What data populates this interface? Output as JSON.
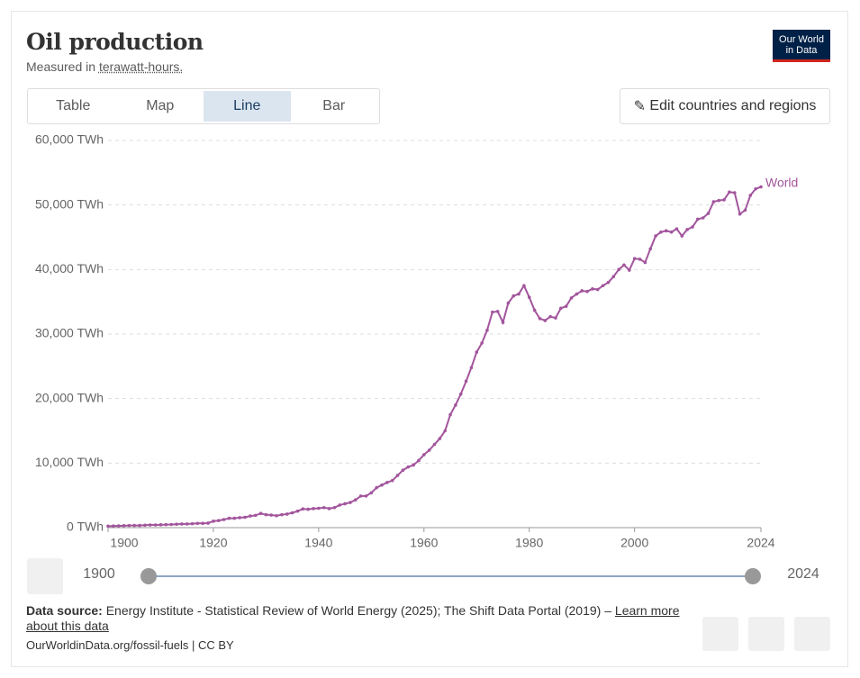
{
  "header": {
    "title": "Oil production",
    "subtitle": [
      "Measured in",
      "terawatt-hours."
    ],
    "logo": [
      "Our World",
      "in Data"
    ]
  },
  "tabs": [
    "Table",
    "Map",
    "Line",
    "Bar"
  ],
  "active_tab": "Line",
  "edit_button": "Edit countries and regions",
  "timeline": {
    "start": 1900,
    "end": 2024
  },
  "footer": {
    "source_label": "Data source:",
    "source_text": "Energy Institute - Statistical Review of World Energy (2025); The Shift Data Portal (2019) –",
    "learn_more": "Learn more about this data",
    "license": "OurWorldinData.org/fossil-fuels | CC BY"
  },
  "chart_data": {
    "type": "line",
    "grid": true,
    "xlim": [
      1900,
      2024
    ],
    "xticks": [
      1900,
      1920,
      1940,
      1960,
      1980,
      2000,
      2024
    ],
    "ylim": [
      0,
      60000
    ],
    "yticks": [
      {
        "value": 0,
        "label": "0 TWh"
      },
      {
        "value": 10000,
        "label": "10,000 TWh"
      },
      {
        "value": 20000,
        "label": "20,000 TWh"
      },
      {
        "value": 30000,
        "label": "30,000 TWh"
      },
      {
        "value": 40000,
        "label": "40,000 TWh"
      },
      {
        "value": 50000,
        "label": "50,000 TWh"
      },
      {
        "value": 60000,
        "label": "60,000 TWh"
      }
    ],
    "x": [
      1900,
      1901,
      1902,
      1903,
      1904,
      1905,
      1906,
      1907,
      1908,
      1909,
      1910,
      1911,
      1912,
      1913,
      1914,
      1915,
      1916,
      1917,
      1918,
      1919,
      1920,
      1921,
      1922,
      1923,
      1924,
      1925,
      1926,
      1927,
      1928,
      1929,
      1930,
      1931,
      1932,
      1933,
      1934,
      1935,
      1936,
      1937,
      1938,
      1939,
      1940,
      1941,
      1942,
      1943,
      1944,
      1945,
      1946,
      1947,
      1948,
      1949,
      1950,
      1951,
      1952,
      1953,
      1954,
      1955,
      1956,
      1957,
      1958,
      1959,
      1960,
      1961,
      1962,
      1963,
      1964,
      1965,
      1966,
      1967,
      1968,
      1969,
      1970,
      1971,
      1972,
      1973,
      1974,
      1975,
      1976,
      1977,
      1978,
      1979,
      1980,
      1981,
      1982,
      1983,
      1984,
      1985,
      1986,
      1987,
      1988,
      1989,
      1990,
      1991,
      1992,
      1993,
      1994,
      1995,
      1996,
      1997,
      1998,
      1999,
      2000,
      2001,
      2002,
      2003,
      2004,
      2005,
      2006,
      2007,
      2008,
      2009,
      2010,
      2011,
      2012,
      2013,
      2014,
      2015,
      2016,
      2017,
      2018,
      2019,
      2020,
      2021,
      2022,
      2023,
      2024
    ],
    "series": [
      {
        "name": "World",
        "color": "#a2559c",
        "values": [
          230,
          250,
          270,
          300,
          330,
          340,
          340,
          380,
          410,
          420,
          440,
          470,
          490,
          530,
          560,
          570,
          610,
          660,
          670,
          700,
          1000,
          1100,
          1250,
          1450,
          1450,
          1550,
          1600,
          1800,
          1900,
          2200,
          2000,
          1950,
          1850,
          2000,
          2100,
          2300,
          2550,
          2900,
          2850,
          2950,
          3000,
          3100,
          2950,
          3100,
          3500,
          3700,
          3900,
          4300,
          4900,
          4900,
          5400,
          6200,
          6600,
          7000,
          7300,
          8100,
          8900,
          9400,
          9700,
          10400,
          11300,
          12000,
          12900,
          13800,
          15000,
          17500,
          19000,
          20700,
          22700,
          24800,
          27200,
          28600,
          30600,
          33400,
          33500,
          31800,
          34800,
          35900,
          36200,
          37500,
          35700,
          33700,
          32400,
          32100,
          32700,
          32500,
          34000,
          34300,
          35600,
          36200,
          36700,
          36600,
          37000,
          36900,
          37500,
          38000,
          38900,
          40000,
          40700,
          39900,
          41700,
          41600,
          41100,
          43200,
          45200,
          45800,
          46000,
          45800,
          46300,
          45200,
          46200,
          46600,
          47800,
          48000,
          48700,
          50500,
          50700,
          50800,
          52000,
          51900,
          48600,
          49200,
          51500,
          52500,
          52800
        ]
      }
    ]
  }
}
